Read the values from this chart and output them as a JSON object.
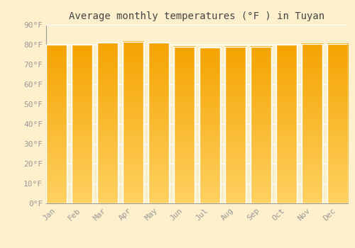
{
  "title": "Average monthly temperatures (°F ) in Tuyan",
  "months": [
    "Jan",
    "Feb",
    "Mar",
    "Apr",
    "May",
    "Jun",
    "Jul",
    "Aug",
    "Sep",
    "Oct",
    "Nov",
    "Dec"
  ],
  "values": [
    80,
    80,
    81,
    81.5,
    81,
    79,
    78.5,
    79,
    79,
    80,
    80.5,
    80.5
  ],
  "ylim": [
    0,
    90
  ],
  "yticks": [
    0,
    10,
    20,
    30,
    40,
    50,
    60,
    70,
    80,
    90
  ],
  "ytick_labels": [
    "0°F",
    "10°F",
    "20°F",
    "30°F",
    "40°F",
    "50°F",
    "60°F",
    "70°F",
    "80°F",
    "90°F"
  ],
  "bar_color_top": "#F5A300",
  "bar_color_bottom": "#FFD060",
  "bar_edge_color": "#FFFFFF",
  "background_color": "#FEF0CC",
  "grid_color": "#FFFFFF",
  "title_fontsize": 10,
  "tick_fontsize": 8,
  "font_family": "monospace",
  "tick_color": "#999999",
  "spine_color": "#999999",
  "title_color": "#444444"
}
